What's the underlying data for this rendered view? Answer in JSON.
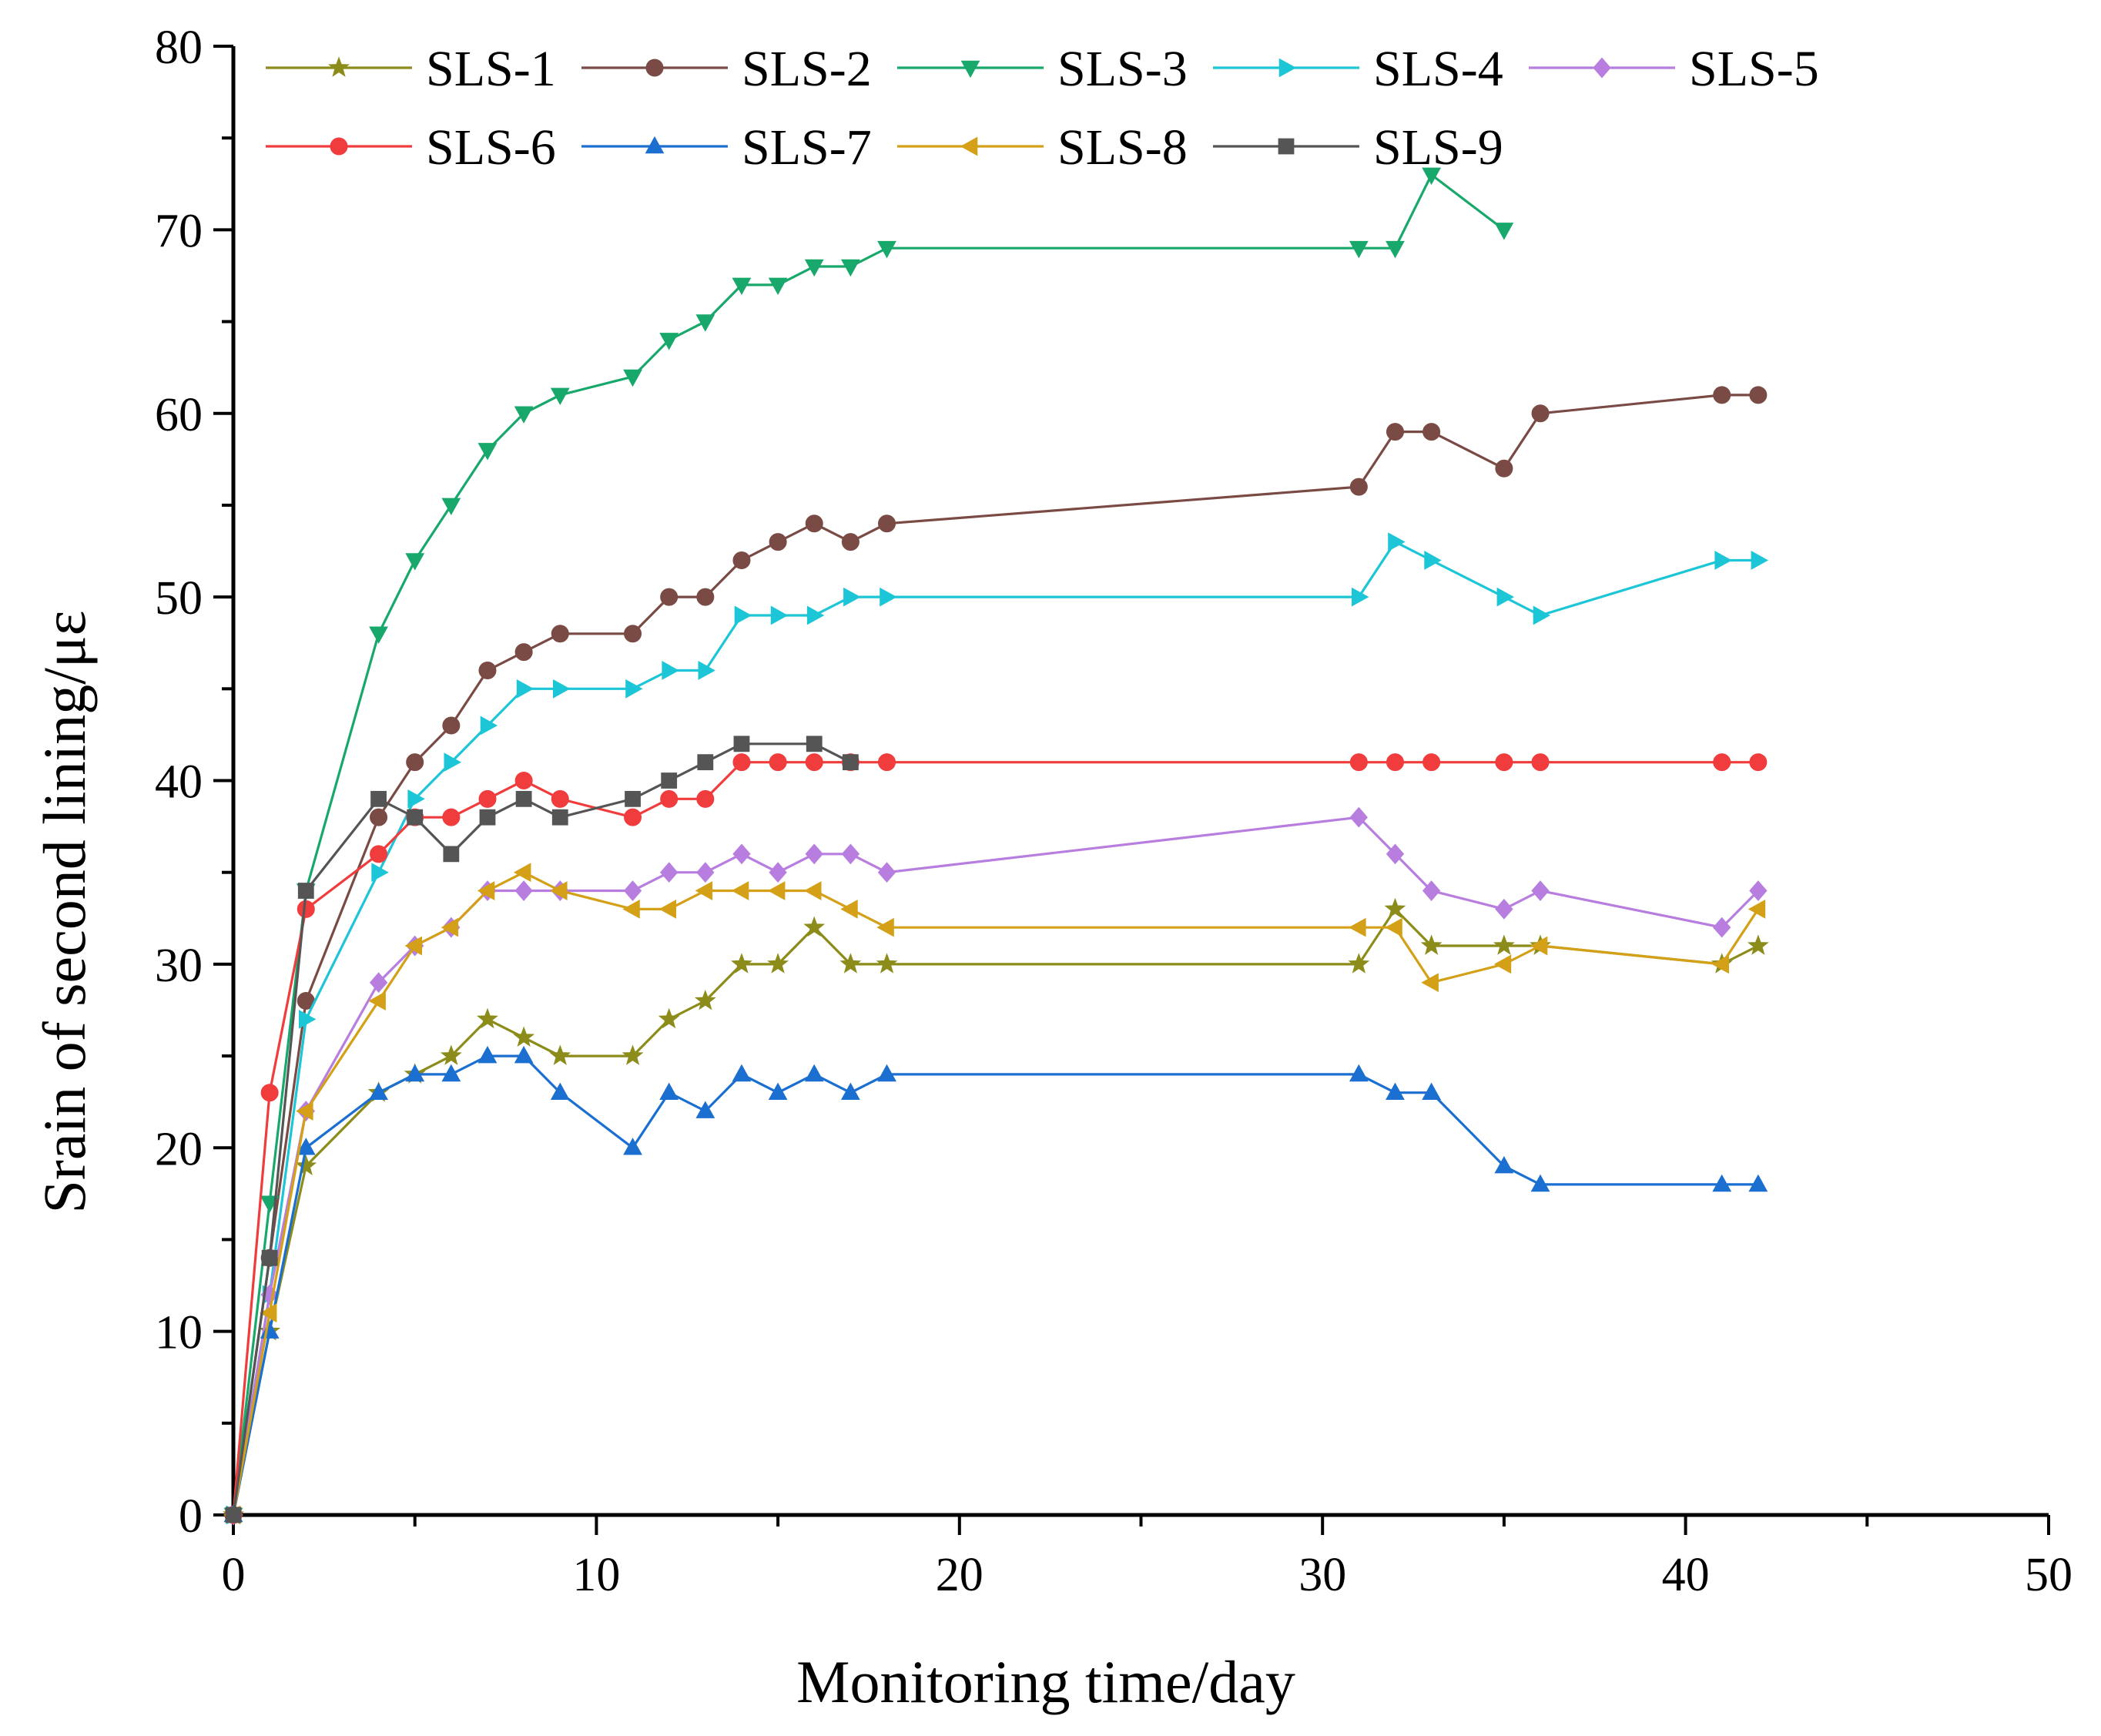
{
  "chart_data": {
    "type": "line",
    "title": "",
    "xlabel": "Monitoring time/day",
    "ylabel": "Srain of second lining/με",
    "xlim": [
      0,
      50
    ],
    "ylim": [
      0,
      80
    ],
    "x_ticks": [
      "0",
      "10",
      "20",
      "30",
      "40",
      "50"
    ],
    "y_ticks": [
      "0",
      "10",
      "20",
      "30",
      "40",
      "50",
      "60",
      "70",
      "80"
    ],
    "grid": false,
    "legend_position": "top",
    "series": [
      {
        "name": "SLS-1",
        "color": "#8c8c1a",
        "marker": "star",
        "x": [
          0,
          1,
          2,
          4,
          5,
          6,
          7,
          8,
          9,
          11,
          12,
          13,
          14,
          15,
          16,
          17,
          18,
          31,
          32,
          33,
          35,
          36,
          41,
          42
        ],
        "y": [
          0,
          10,
          19,
          23,
          24,
          25,
          27,
          26,
          25,
          25,
          27,
          28,
          30,
          30,
          32,
          30,
          30,
          30,
          33,
          31,
          31,
          31,
          30,
          31
        ]
      },
      {
        "name": "SLS-2",
        "color": "#7a4a44",
        "marker": "circle",
        "x": [
          0,
          1,
          2,
          4,
          5,
          6,
          7,
          8,
          9,
          11,
          12,
          13,
          14,
          15,
          16,
          17,
          18,
          31,
          32,
          33,
          35,
          36,
          41,
          42
        ],
        "y": [
          0,
          14,
          28,
          38,
          41,
          43,
          46,
          47,
          48,
          48,
          50,
          50,
          52,
          53,
          54,
          53,
          54,
          56,
          59,
          59,
          57,
          60,
          61,
          61
        ]
      },
      {
        "name": "SLS-3",
        "color": "#18a86b",
        "marker": "triangle-down",
        "x": [
          0,
          1,
          2,
          4,
          5,
          6,
          7,
          8,
          9,
          11,
          12,
          13,
          14,
          15,
          16,
          17,
          18,
          31,
          32,
          33,
          35
        ],
        "y": [
          0,
          17,
          34,
          48,
          52,
          55,
          58,
          60,
          61,
          62,
          64,
          65,
          67,
          67,
          68,
          68,
          69,
          69,
          69,
          73,
          70
        ]
      },
      {
        "name": "SLS-4",
        "color": "#1cc6d6",
        "marker": "triangle-right",
        "x": [
          0,
          1,
          2,
          4,
          5,
          6,
          7,
          8,
          9,
          11,
          12,
          13,
          14,
          15,
          16,
          17,
          18,
          31,
          32,
          33,
          35,
          36,
          41,
          42
        ],
        "y": [
          0,
          12,
          27,
          35,
          39,
          41,
          43,
          45,
          45,
          45,
          46,
          46,
          49,
          49,
          49,
          50,
          50,
          50,
          53,
          52,
          50,
          49,
          52,
          52
        ]
      },
      {
        "name": "SLS-5",
        "color": "#b77ee0",
        "marker": "diamond",
        "x": [
          0,
          1,
          2,
          4,
          5,
          6,
          7,
          8,
          9,
          11,
          12,
          13,
          14,
          15,
          16,
          17,
          18,
          31,
          32,
          33,
          35,
          36,
          41,
          42
        ],
        "y": [
          0,
          12,
          22,
          29,
          31,
          32,
          34,
          34,
          34,
          34,
          35,
          35,
          36,
          35,
          36,
          36,
          35,
          38,
          36,
          34,
          33,
          34,
          32,
          34
        ]
      },
      {
        "name": "SLS-6",
        "color": "#f03c3c",
        "marker": "circle",
        "x": [
          0,
          1,
          2,
          4,
          5,
          6,
          7,
          8,
          9,
          11,
          12,
          13,
          14,
          15,
          16,
          17,
          18,
          31,
          32,
          33,
          35,
          36,
          41,
          42
        ],
        "y": [
          0,
          23,
          33,
          36,
          38,
          38,
          39,
          40,
          39,
          38,
          39,
          39,
          41,
          41,
          41,
          41,
          41,
          41,
          41,
          41,
          41,
          41,
          41,
          41
        ]
      },
      {
        "name": "SLS-7",
        "color": "#1a6fd0",
        "marker": "triangle-up",
        "x": [
          0,
          1,
          2,
          4,
          5,
          6,
          7,
          8,
          9,
          11,
          12,
          13,
          14,
          15,
          16,
          17,
          18,
          31,
          32,
          33,
          35,
          36,
          41,
          42
        ],
        "y": [
          0,
          10,
          20,
          23,
          24,
          24,
          25,
          25,
          23,
          20,
          23,
          22,
          24,
          23,
          24,
          23,
          24,
          24,
          23,
          23,
          19,
          18,
          18,
          18
        ]
      },
      {
        "name": "SLS-8",
        "color": "#d4a017",
        "marker": "triangle-left",
        "x": [
          0,
          1,
          2,
          4,
          5,
          6,
          7,
          8,
          9,
          11,
          12,
          13,
          14,
          15,
          16,
          17,
          18,
          31,
          32,
          33,
          35,
          36,
          41,
          42
        ],
        "y": [
          0,
          11,
          22,
          28,
          31,
          32,
          34,
          35,
          34,
          33,
          33,
          34,
          34,
          34,
          34,
          33,
          32,
          32,
          32,
          29,
          30,
          31,
          30,
          33
        ]
      },
      {
        "name": "SLS-9",
        "color": "#555555",
        "marker": "square",
        "x": [
          0,
          1,
          2,
          4,
          5,
          6,
          7,
          8,
          9,
          11,
          12,
          13,
          14,
          16,
          17
        ],
        "y": [
          0,
          14,
          34,
          39,
          38,
          36,
          38,
          39,
          38,
          39,
          40,
          41,
          42,
          42,
          41
        ]
      }
    ]
  }
}
